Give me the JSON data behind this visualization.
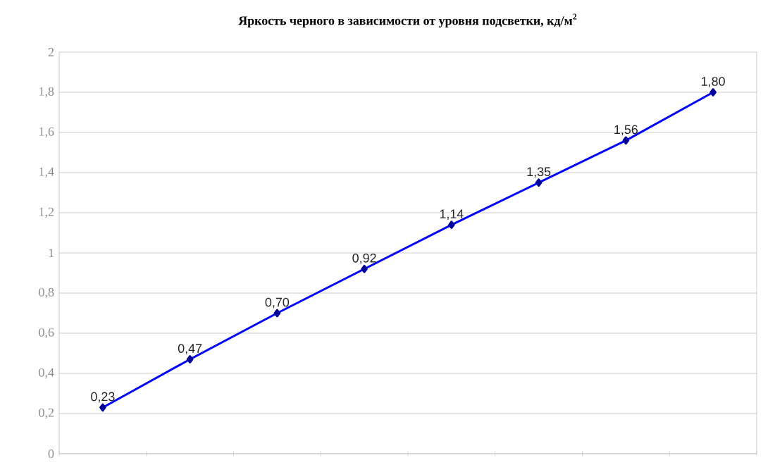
{
  "chart_data": {
    "type": "line",
    "title": "Яркость черного в зависимости от уровня подсветки, кд/м$^{2}$",
    "categories": [
      null,
      null,
      null,
      null,
      null,
      null,
      null,
      null
    ],
    "values": [
      0.23,
      0.47,
      0.7,
      0.92,
      1.14,
      1.35,
      1.56,
      1.8
    ],
    "value_labels": [
      "0,23",
      "0,47",
      "0,70",
      "0,92",
      "1,14",
      "1,35",
      "1,56",
      "1,80"
    ],
    "color": "#0000ff",
    "marker": "diamond",
    "grid": "y",
    "tick_labels": "y",
    "ylim": [
      0,
      2
    ],
    "yticks": [
      0,
      {
        "value": 0.2,
        "label": "0,2"
      },
      {
        "value": 0.4,
        "label": "0,4"
      },
      {
        "value": 0.6,
        "label": "0,6"
      },
      {
        "value": 0.8,
        "label": "0,8"
      },
      1,
      {
        "value": 1.2,
        "label": "1,2"
      },
      {
        "value": 1.4,
        "label": "1,4"
      },
      {
        "value": 1.6,
        "label": "1,6"
      },
      {
        "value": 1.8,
        "label": "1,8"
      },
      2
    ]
  }
}
